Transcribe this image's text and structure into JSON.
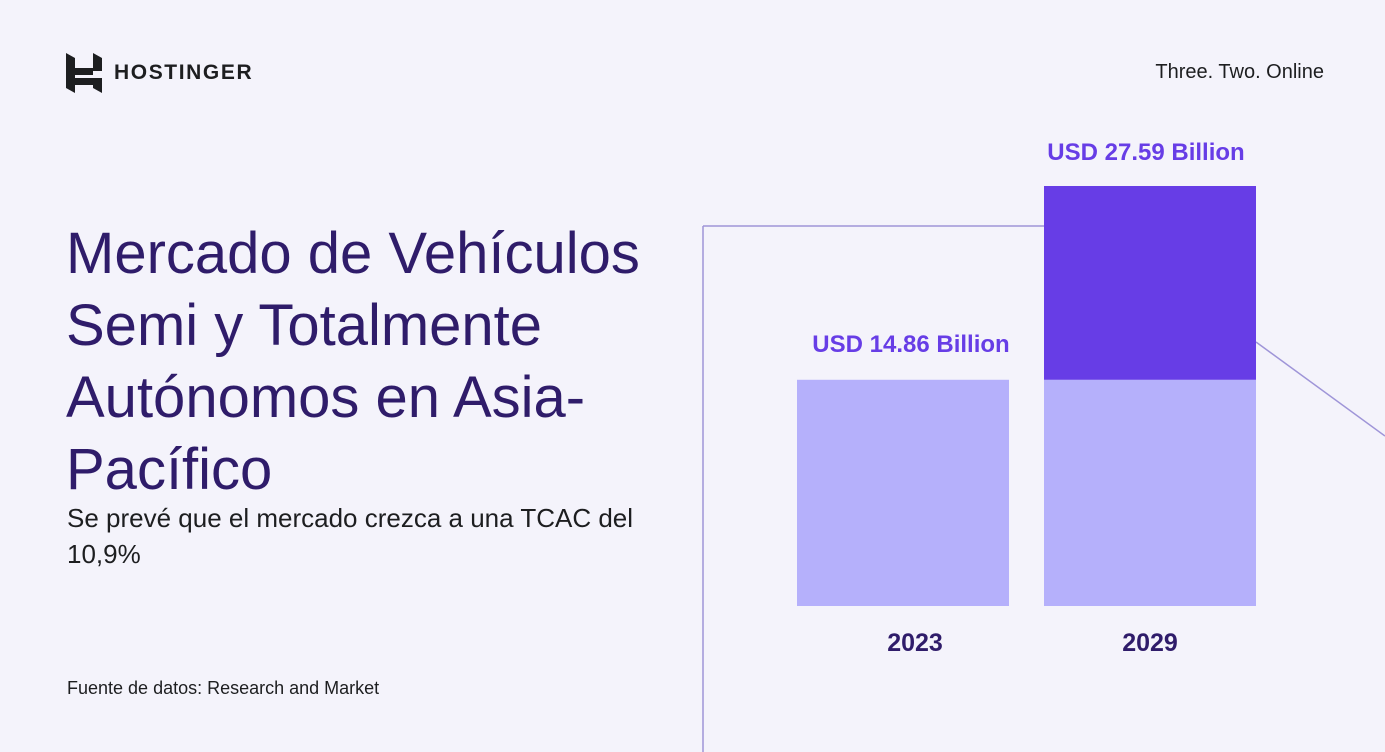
{
  "brand": {
    "name": "HOSTINGER",
    "logo_icon": "hostinger-h-logo-icon"
  },
  "tagline": "Three. Two. Online",
  "title": "Mercado de Vehículos Semi y Totalmente Autónomos en Asia-Pacífico",
  "subtitle": "Se prevé que el mercado crezca a una TCAC del 10,9%",
  "source": "Fuente de datos: Research and Market",
  "colors": {
    "text_primary": "#2f1c6a",
    "accent": "#673de6",
    "bar_light": "#b5b0fb",
    "background": "#f4f3fb"
  },
  "chart_data": {
    "type": "bar",
    "categories": [
      "2023",
      "2029"
    ],
    "values": [
      14.86,
      27.59
    ],
    "value_labels": [
      "USD 14.86 Billion",
      "USD 27.59 Billion"
    ],
    "unit": "USD Billion",
    "ylim": [
      0,
      27.59
    ],
    "grid": false,
    "legend": "none",
    "highlight": "2029 bar top segment shows growth above the 2023 level"
  }
}
